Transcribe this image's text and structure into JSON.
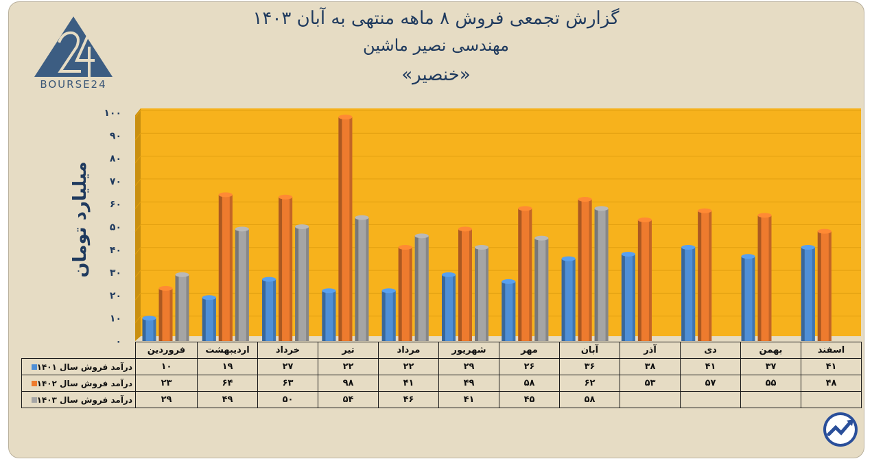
{
  "header": {
    "title_line1": "گزارش تجمعی فروش ۸ ماهه منتهی به آبان ۱۴۰۳",
    "title_line2": "مهندسی نصیر ماشین",
    "title_line3": "«خنصیر»"
  },
  "logo": {
    "text": "BOURSE24",
    "icon": "bourse24-logo"
  },
  "colors": {
    "s1401": "#4f8fd6",
    "s1402": "#ee7b2e",
    "s1403": "#a5a5a5",
    "plot_bg": "#f7b21c",
    "frame_bg": "#e6dcc4"
  },
  "chart_data": {
    "type": "bar",
    "ylabel": "میلیارد تومان",
    "ylim": [
      0,
      100
    ],
    "yticks": [
      "۰",
      "۱۰",
      "۲۰",
      "۳۰",
      "۴۰",
      "۵۰",
      "۶۰",
      "۷۰",
      "۸۰",
      "۹۰",
      "۱۰۰"
    ],
    "categories": [
      "فروردین",
      "اردیبهشت",
      "خرداد",
      "تیر",
      "مرداد",
      "شهریور",
      "مهر",
      "آبان",
      "آذر",
      "دی",
      "بهمن",
      "اسفند"
    ],
    "series": [
      {
        "name": "درآمد فروش سال ۱۴۰۱",
        "color": "#4f8fd6",
        "values": [
          10,
          19,
          27,
          22,
          22,
          29,
          26,
          36,
          38,
          41,
          37,
          41
        ],
        "labels": [
          "۱۰",
          "۱۹",
          "۲۷",
          "۲۲",
          "۲۲",
          "۲۹",
          "۲۶",
          "۳۶",
          "۳۸",
          "۴۱",
          "۳۷",
          "۴۱"
        ]
      },
      {
        "name": "درآمد فروش سال ۱۴۰۲",
        "color": "#ee7b2e",
        "values": [
          23,
          64,
          63,
          98,
          41,
          49,
          58,
          62,
          53,
          57,
          55,
          48
        ],
        "labels": [
          "۲۳",
          "۶۴",
          "۶۳",
          "۹۸",
          "۴۱",
          "۴۹",
          "۵۸",
          "۶۲",
          "۵۳",
          "۵۷",
          "۵۵",
          "۴۸"
        ]
      },
      {
        "name": "درآمد فروش سال ۱۴۰۳",
        "color": "#a5a5a5",
        "values": [
          29,
          49,
          50,
          54,
          46,
          41,
          45,
          58,
          null,
          null,
          null,
          null
        ],
        "labels": [
          "۲۹",
          "۴۹",
          "۵۰",
          "۵۴",
          "۴۶",
          "۴۱",
          "۴۵",
          "۵۸",
          "",
          "",
          "",
          ""
        ]
      }
    ]
  }
}
